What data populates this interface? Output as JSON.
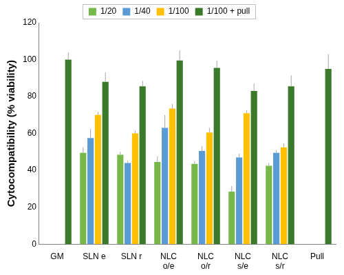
{
  "chart_data": {
    "type": "bar",
    "categories": [
      "GM",
      "SLN e",
      "SLN r",
      "NLC o/e",
      "NLC o/r",
      "NLC s/e",
      "NLC s/r",
      "Pull"
    ],
    "y_label": "Cytocompatibility (% viability)",
    "ylim": [
      0,
      120
    ],
    "yticks": [
      0,
      20,
      40,
      60,
      80,
      100,
      120
    ],
    "grid": false,
    "legend": "top",
    "series": [
      {
        "name": "1/20",
        "color": "#77b84a",
        "values": [
          null,
          49.5,
          48.5,
          44.5,
          43.5,
          28.5,
          42.5,
          null
        ],
        "errors": [
          null,
          3,
          1.5,
          3,
          1.5,
          3,
          1.5,
          null
        ]
      },
      {
        "name": "1/40",
        "color": "#5b9bd5",
        "values": [
          null,
          57.5,
          44,
          63,
          50.5,
          47,
          49.5,
          null
        ],
        "errors": [
          null,
          5,
          1,
          7,
          2.5,
          2,
          1.5,
          null
        ]
      },
      {
        "name": "1/100",
        "color": "#ffc000",
        "values": [
          null,
          70,
          60,
          73.5,
          60.5,
          71,
          52.5,
          null
        ],
        "errors": [
          null,
          1.5,
          1.5,
          2.5,
          2.5,
          1.5,
          2,
          null
        ]
      },
      {
        "name": "1/100 + pull",
        "color": "#3b7a2a",
        "values": [
          100,
          88,
          85.5,
          99.5,
          95.5,
          83,
          85.5,
          95
        ],
        "errors": [
          4,
          5,
          3,
          5.5,
          4,
          4,
          6,
          8
        ]
      }
    ]
  }
}
